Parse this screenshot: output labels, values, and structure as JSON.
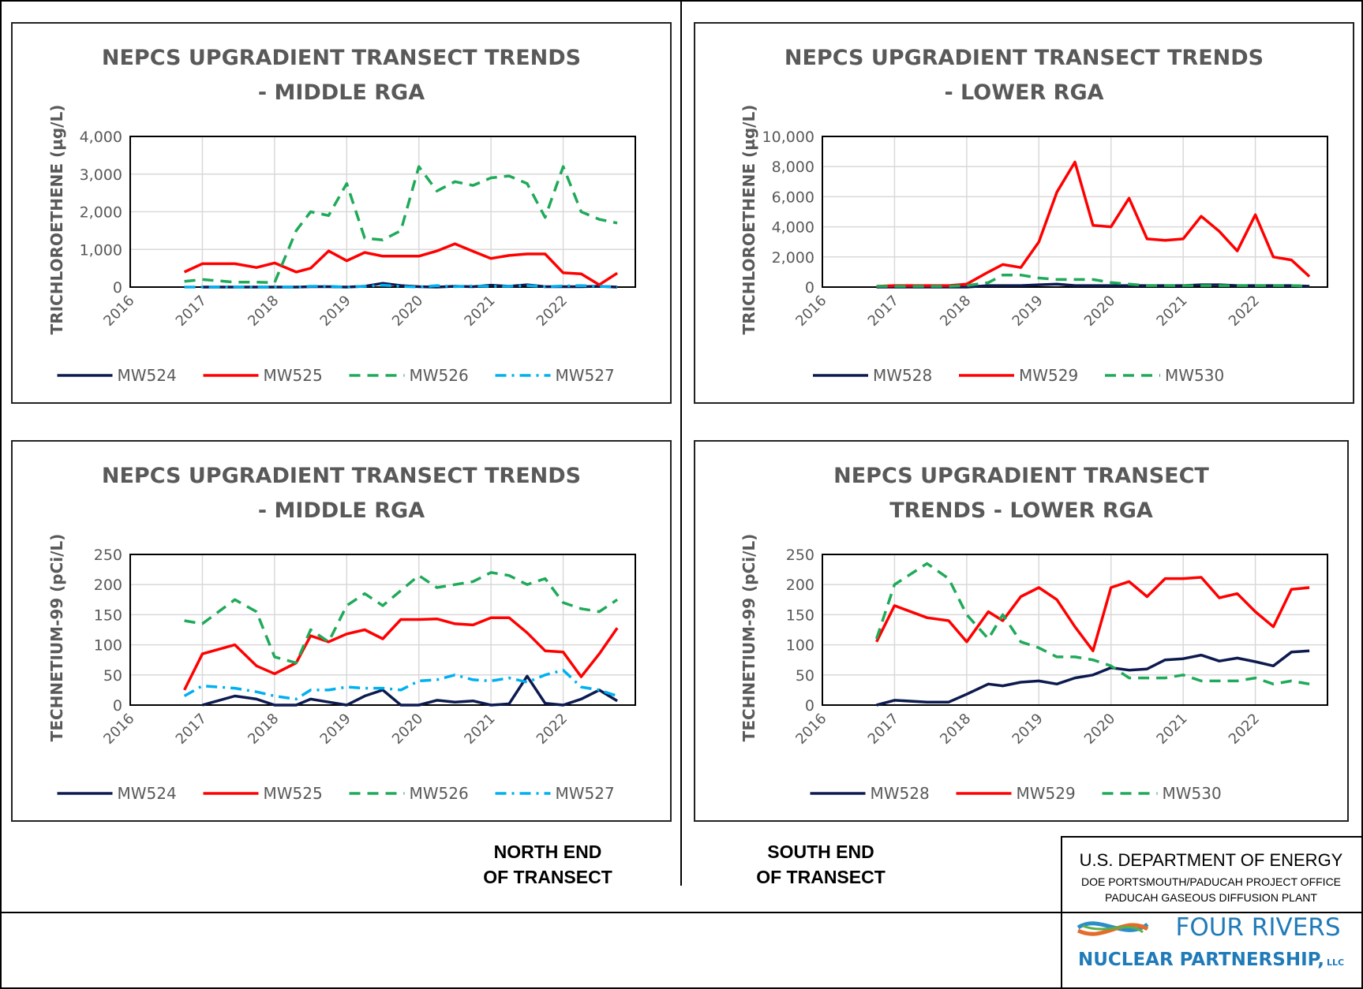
{
  "chart_data": [
    {
      "type": "line",
      "title": "NEPCS UPGRADIENT TRANSECT TRENDS - MIDDLE RGA",
      "ylabel": "TRICHLOROETHENE (µg/L)",
      "x": [
        2016.75,
        2017.0,
        2017.45,
        2017.75,
        2018.0,
        2018.3,
        2018.5,
        2018.75,
        2019.0,
        2019.25,
        2019.5,
        2019.75,
        2020.0,
        2020.25,
        2020.5,
        2020.75,
        2021.0,
        2021.25,
        2021.5,
        2021.75,
        2022.0,
        2022.25,
        2022.5,
        2022.75
      ],
      "xlim": [
        2016,
        2023
      ],
      "xticks": [
        2016,
        2017,
        2018,
        2019,
        2020,
        2021,
        2022
      ],
      "ylim": [
        0,
        4000
      ],
      "yticks": [
        0,
        {
          "value": 1000,
          "label": "1,000"
        },
        {
          "value": 2000,
          "label": "2,000"
        },
        {
          "value": 3000,
          "label": "3,000"
        },
        {
          "value": 4000,
          "label": "4,000"
        }
      ],
      "grid": true,
      "legend": "bottom",
      "series": [
        {
          "name": "MW524",
          "color": "#0d1a4f",
          "dash": "solid",
          "values": [
            null,
            0,
            0,
            0,
            0,
            0,
            10,
            10,
            0,
            20,
            100,
            40,
            10,
            0,
            20,
            10,
            50,
            20,
            60,
            10,
            10,
            10,
            20,
            0
          ]
        },
        {
          "name": "MW525",
          "color": "#ff0000",
          "dash": "solid",
          "values": [
            400,
            620,
            620,
            520,
            640,
            400,
            500,
            960,
            700,
            920,
            820,
            820,
            820,
            960,
            1150,
            950,
            760,
            840,
            880,
            880,
            380,
            350,
            60,
            370
          ]
        },
        {
          "name": "MW526",
          "color": "#1faa59",
          "dash": "dashed",
          "values": [
            150,
            200,
            130,
            130,
            120,
            1500,
            2000,
            1900,
            2750,
            1300,
            1250,
            1500,
            3200,
            2550,
            2800,
            2700,
            2900,
            2950,
            2750,
            1850,
            3200,
            2000,
            1800,
            1700
          ]
        },
        {
          "name": "MW527",
          "color": "#00b0f0",
          "dash": "dashdot",
          "values": [
            0,
            0,
            0,
            0,
            0,
            0,
            20,
            20,
            0,
            20,
            50,
            20,
            0,
            40,
            10,
            30,
            20,
            20,
            40,
            10,
            30,
            40,
            20,
            0
          ]
        }
      ]
    },
    {
      "type": "line",
      "title": "NEPCS UPGRADIENT TRANSECT TRENDS - LOWER RGA",
      "ylabel": "TRICHLOROETHENE (µg/L)",
      "x": [
        2016.75,
        2017.0,
        2017.45,
        2017.75,
        2018.0,
        2018.3,
        2018.5,
        2018.75,
        2019.0,
        2019.25,
        2019.5,
        2019.75,
        2020.0,
        2020.25,
        2020.5,
        2020.75,
        2021.0,
        2021.25,
        2021.5,
        2021.75,
        2022.0,
        2022.25,
        2022.5,
        2022.75
      ],
      "xlim": [
        2016,
        2023
      ],
      "xticks": [
        2016,
        2017,
        2018,
        2019,
        2020,
        2021,
        2022
      ],
      "ylim": [
        0,
        10000
      ],
      "yticks": [
        0,
        {
          "value": 2000,
          "label": "2,000"
        },
        {
          "value": 4000,
          "label": "4,000"
        },
        {
          "value": 6000,
          "label": "6,000"
        },
        {
          "value": 8000,
          "label": "8,000"
        },
        {
          "value": 10000,
          "label": "10,000"
        }
      ],
      "grid": true,
      "legend": "bottom",
      "series": [
        {
          "name": "MW528",
          "color": "#0d1a4f",
          "dash": "solid",
          "values": [
            0,
            0,
            0,
            0,
            0,
            100,
            100,
            100,
            150,
            200,
            100,
            100,
            100,
            100,
            100,
            100,
            100,
            150,
            150,
            100,
            100,
            100,
            100,
            50
          ]
        },
        {
          "name": "MW529",
          "color": "#ff0000",
          "dash": "solid",
          "values": [
            50,
            100,
            100,
            100,
            200,
            1000,
            1500,
            1300,
            3000,
            6300,
            8300,
            4100,
            4000,
            5900,
            3200,
            3100,
            3200,
            4700,
            3700,
            2400,
            4800,
            2000,
            1800,
            700
          ]
        },
        {
          "name": "MW530",
          "color": "#1faa59",
          "dash": "dashed",
          "values": [
            50,
            50,
            50,
            50,
            100,
            300,
            800,
            800,
            600,
            500,
            500,
            500,
            300,
            200,
            100,
            100,
            100,
            100,
            100,
            100,
            100,
            100,
            100,
            50
          ]
        }
      ]
    },
    {
      "type": "line",
      "title": "NEPCS UPGRADIENT TRANSECT TRENDS - MIDDLE RGA",
      "ylabel": "TECHNETIUM-99 (pCi/L)",
      "x": [
        2016.75,
        2017.0,
        2017.45,
        2017.75,
        2018.0,
        2018.3,
        2018.5,
        2018.75,
        2019.0,
        2019.25,
        2019.5,
        2019.75,
        2020.0,
        2020.25,
        2020.5,
        2020.75,
        2021.0,
        2021.25,
        2021.5,
        2021.75,
        2022.0,
        2022.25,
        2022.5,
        2022.75
      ],
      "xlim": [
        2016,
        2023
      ],
      "xticks": [
        2016,
        2017,
        2018,
        2019,
        2020,
        2021,
        2022
      ],
      "ylim": [
        0,
        250
      ],
      "yticks": [
        0,
        50,
        100,
        150,
        200,
        250
      ],
      "grid": true,
      "legend": "bottom",
      "series": [
        {
          "name": "MW524",
          "color": "#0d1a4f",
          "dash": "solid",
          "values": [
            null,
            0,
            15,
            10,
            0,
            0,
            10,
            5,
            0,
            15,
            25,
            0,
            0,
            8,
            5,
            7,
            0,
            2,
            48,
            3,
            0,
            10,
            25,
            7
          ]
        },
        {
          "name": "MW525",
          "color": "#ff0000",
          "dash": "solid",
          "values": [
            25,
            85,
            100,
            65,
            52,
            70,
            115,
            105,
            118,
            125,
            110,
            142,
            142,
            143,
            135,
            133,
            145,
            145,
            120,
            90,
            88,
            47,
            85,
            128
          ]
        },
        {
          "name": "MW526",
          "color": "#1faa59",
          "dash": "dashed",
          "values": [
            140,
            135,
            175,
            155,
            80,
            70,
            125,
            105,
            165,
            185,
            165,
            190,
            215,
            195,
            200,
            205,
            220,
            215,
            200,
            210,
            170,
            160,
            155,
            175
          ]
        },
        {
          "name": "MW527",
          "color": "#00b0f0",
          "dash": "dashdot",
          "values": [
            15,
            32,
            28,
            22,
            15,
            10,
            25,
            25,
            30,
            28,
            28,
            25,
            40,
            42,
            50,
            42,
            40,
            45,
            38,
            50,
            58,
            30,
            25,
            15
          ]
        }
      ]
    },
    {
      "type": "line",
      "title": "NEPCS UPGRADIENT TRANSECT TRENDS - LOWER RGA",
      "ylabel": "TECHNETIUM-99 (pCi/L)",
      "x": [
        2016.75,
        2017.0,
        2017.45,
        2017.75,
        2018.0,
        2018.3,
        2018.5,
        2018.75,
        2019.0,
        2019.25,
        2019.5,
        2019.75,
        2020.0,
        2020.25,
        2020.5,
        2020.75,
        2021.0,
        2021.25,
        2021.5,
        2021.75,
        2022.0,
        2022.25,
        2022.5,
        2022.75
      ],
      "xlim": [
        2016,
        2023
      ],
      "xticks": [
        2016,
        2017,
        2018,
        2019,
        2020,
        2021,
        2022
      ],
      "ylim": [
        0,
        250
      ],
      "yticks": [
        0,
        50,
        100,
        150,
        200,
        250
      ],
      "grid": true,
      "legend": "bottom",
      "series": [
        {
          "name": "MW528",
          "color": "#0d1a4f",
          "dash": "solid",
          "values": [
            0,
            8,
            5,
            5,
            18,
            35,
            32,
            38,
            40,
            35,
            45,
            50,
            62,
            58,
            60,
            75,
            77,
            83,
            73,
            78,
            72,
            65,
            88,
            90
          ]
        },
        {
          "name": "MW529",
          "color": "#ff0000",
          "dash": "solid",
          "values": [
            105,
            165,
            145,
            140,
            105,
            155,
            140,
            180,
            195,
            175,
            130,
            90,
            195,
            205,
            180,
            210,
            210,
            212,
            178,
            185,
            155,
            130,
            192,
            195
          ]
        },
        {
          "name": "MW530",
          "color": "#1faa59",
          "dash": "dashed",
          "values": [
            110,
            200,
            235,
            210,
            150,
            110,
            150,
            105,
            95,
            80,
            80,
            75,
            65,
            45,
            45,
            45,
            50,
            40,
            40,
            40,
            45,
            35,
            40,
            35
          ]
        }
      ]
    }
  ],
  "notes": {
    "north": [
      "NORTH END",
      "OF TRANSECT"
    ],
    "south": [
      "SOUTH END",
      "OF TRANSECT"
    ]
  },
  "titleblock": {
    "agency": "U.S. DEPARTMENT OF ENERGY",
    "office": "DOE PORTSMOUTH/PADUCAH PROJECT OFFICE",
    "plant": "PADUCAH GASEOUS DIFFUSION PLANT",
    "logo_line1": "FOUR RIVERS",
    "logo_line2": "NUCLEAR PARTNERSHIP,",
    "logo_suffix": "LLC"
  }
}
